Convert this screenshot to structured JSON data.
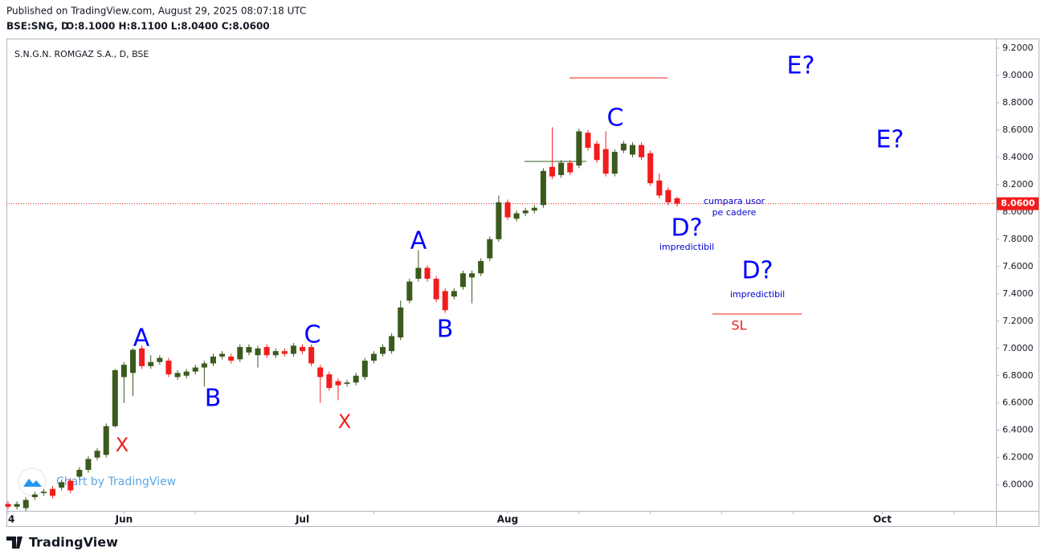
{
  "header": {
    "published": "Published on TradingView.com, August 29, 2025 08:07:18 UTC",
    "symbol": "BSE:SNG, D",
    "ohlc": "O:8.1000 H:8.1100 L:8.0400 C:8.0600",
    "watermark": "Chart by TradingView",
    "brand": "TradingView"
  },
  "chart_data": {
    "type": "candlestick",
    "title": "S.N.G.N. ROMGAZ S.A., D, BSE",
    "categories": [
      "4",
      null,
      null,
      null,
      null,
      null,
      null,
      null,
      null,
      null,
      null,
      null,
      null,
      "Jun",
      null,
      null,
      null,
      null,
      null,
      null,
      null,
      null,
      null,
      null,
      null,
      null,
      null,
      null,
      null,
      null,
      null,
      null,
      null,
      "Jul",
      null,
      null,
      null,
      null,
      null,
      null,
      null,
      null,
      null,
      null,
      null,
      null,
      null,
      null,
      null,
      null,
      null,
      null,
      null,
      null,
      null,
      null,
      "Aug",
      null,
      null,
      null,
      null,
      null,
      null,
      null,
      null,
      null,
      null,
      null,
      null,
      null,
      null,
      null,
      null,
      null,
      null,
      null,
      null,
      null,
      null,
      null,
      null,
      null,
      null,
      null,
      null,
      null,
      null,
      null,
      null,
      null,
      null,
      null,
      null,
      null,
      null,
      null,
      null,
      null,
      "Oct",
      null,
      null,
      null,
      null,
      null,
      null,
      null,
      null,
      null,
      null,
      null,
      null
    ],
    "open": [
      5.86,
      5.84,
      5.83,
      5.91,
      5.94,
      5.97,
      5.98,
      6.03,
      6.06,
      6.11,
      6.2,
      6.22,
      6.43,
      6.79,
      6.82,
      7.0,
      6.87,
      6.9,
      6.91,
      6.79,
      6.8,
      6.83,
      6.86,
      6.89,
      6.94,
      6.94,
      6.92,
      6.97,
      6.95,
      7.01,
      6.95,
      6.98,
      6.96,
      7.01,
      7.01,
      6.86,
      6.81,
      6.76,
      6.74,
      6.75,
      6.79,
      6.91,
      6.96,
      6.98,
      7.08,
      7.35,
      7.51,
      7.59,
      7.51,
      7.42,
      7.38,
      7.45,
      7.52,
      7.55,
      7.66,
      7.8,
      8.07,
      7.95,
      7.99,
      8.01,
      8.05,
      8.33,
      8.27,
      8.36,
      8.34,
      8.58,
      8.5,
      8.46,
      8.28,
      8.45,
      8.42,
      8.49,
      8.43,
      8.23,
      8.16,
      8.1,
      null,
      null,
      null,
      null,
      null,
      null,
      null,
      null,
      null,
      null,
      null,
      null,
      null,
      null,
      null,
      null,
      null,
      null,
      null,
      null,
      null,
      null,
      null,
      null,
      null,
      null,
      null,
      null,
      null,
      null,
      null,
      null,
      null,
      null,
      null
    ],
    "high": [
      5.88,
      5.88,
      5.91,
      5.95,
      5.97,
      5.99,
      6.04,
      6.05,
      6.13,
      6.21,
      6.27,
      6.45,
      6.85,
      6.9,
      7.0,
      7.02,
      6.95,
      6.95,
      6.93,
      6.84,
      6.85,
      6.88,
      6.91,
      6.96,
      6.98,
      6.96,
      7.03,
      7.03,
      7.02,
      7.03,
      7.0,
      7.0,
      7.04,
      7.03,
      7.03,
      6.88,
      6.83,
      6.78,
      6.77,
      6.82,
      6.93,
      6.98,
      7.03,
      7.11,
      7.35,
      7.51,
      7.72,
      7.61,
      7.53,
      7.44,
      7.44,
      7.57,
      7.57,
      7.66,
      7.82,
      8.12,
      8.09,
      8.01,
      8.03,
      8.05,
      8.32,
      8.62,
      8.38,
      8.38,
      8.61,
      8.6,
      8.52,
      8.59,
      8.46,
      8.52,
      8.51,
      8.51,
      8.45,
      8.28,
      8.18,
      8.11,
      null,
      null,
      null,
      null,
      null,
      null,
      null,
      null,
      null,
      null,
      null,
      null,
      null,
      null,
      null,
      null,
      null,
      null,
      null,
      null,
      null,
      null,
      null,
      null,
      null,
      null,
      null,
      null,
      null,
      null,
      null,
      null,
      null,
      null,
      null
    ],
    "low": [
      5.82,
      5.82,
      5.81,
      5.89,
      5.92,
      5.9,
      5.96,
      5.94,
      6.04,
      6.09,
      6.18,
      6.2,
      6.42,
      6.6,
      6.65,
      6.85,
      6.85,
      6.88,
      6.79,
      6.77,
      6.78,
      6.81,
      6.72,
      6.87,
      6.92,
      6.89,
      6.9,
      6.95,
      6.86,
      6.93,
      6.93,
      6.94,
      6.94,
      6.96,
      6.87,
      6.6,
      6.69,
      6.62,
      6.72,
      6.73,
      6.77,
      6.89,
      6.94,
      6.96,
      7.06,
      7.33,
      7.49,
      7.49,
      7.34,
      7.26,
      7.36,
      7.43,
      7.33,
      7.53,
      7.64,
      7.78,
      7.94,
      7.93,
      7.97,
      7.99,
      8.03,
      8.24,
      8.25,
      8.27,
      8.32,
      8.45,
      8.36,
      8.26,
      8.26,
      8.43,
      8.4,
      8.38,
      8.19,
      8.1,
      8.05,
      8.04,
      null,
      null,
      null,
      null,
      null,
      null,
      null,
      null,
      null,
      null,
      null,
      null,
      null,
      null,
      null,
      null,
      null,
      null,
      null,
      null,
      null,
      null,
      null,
      null,
      null,
      null,
      null,
      null,
      null,
      null,
      null,
      null,
      null,
      null,
      null
    ],
    "close": [
      5.84,
      5.86,
      5.89,
      5.93,
      5.95,
      5.92,
      6.02,
      5.96,
      6.11,
      6.19,
      6.25,
      6.43,
      6.84,
      6.88,
      6.99,
      6.87,
      6.9,
      6.93,
      6.81,
      6.82,
      6.83,
      6.86,
      6.89,
      6.94,
      6.96,
      6.91,
      7.01,
      7.01,
      7.0,
      6.95,
      6.98,
      6.96,
      7.02,
      6.98,
      6.89,
      6.79,
      6.71,
      6.73,
      6.75,
      6.8,
      6.91,
      6.96,
      7.01,
      7.09,
      7.3,
      7.49,
      7.59,
      7.51,
      7.36,
      7.28,
      7.42,
      7.55,
      7.55,
      7.64,
      7.8,
      8.07,
      7.96,
      7.99,
      8.01,
      8.03,
      8.3,
      8.26,
      8.36,
      8.29,
      8.59,
      8.47,
      8.38,
      8.28,
      8.44,
      8.5,
      8.49,
      8.4,
      8.21,
      8.12,
      8.07,
      8.06,
      null,
      null,
      null,
      null,
      null,
      null,
      null,
      null,
      null,
      null,
      null,
      null,
      null,
      null,
      null,
      null,
      null,
      null,
      null,
      null,
      null,
      null,
      null,
      null,
      null,
      null,
      null,
      null,
      null,
      null,
      null,
      null,
      null,
      null,
      null
    ],
    "up_color": "#3b5a1d",
    "down_color": "#f21c1c",
    "ylim": [
      5.81,
      9.27
    ],
    "yticks": [
      {
        "value": 6.0,
        "label": "6.0000"
      },
      {
        "value": 6.2,
        "label": "6.2000"
      },
      {
        "value": 6.4,
        "label": "6.4000"
      },
      {
        "value": 6.6,
        "label": "6.6000"
      },
      {
        "value": 6.8,
        "label": "6.8000"
      },
      {
        "value": 7.0,
        "label": "7.0000"
      },
      {
        "value": 7.2,
        "label": "7.2000"
      },
      {
        "value": 7.4,
        "label": "7.4000"
      },
      {
        "value": 7.6,
        "label": "7.6000"
      },
      {
        "value": 7.8,
        "label": "7.8000"
      },
      {
        "value": 8.0,
        "label": "8.0000"
      },
      {
        "value": 8.2,
        "label": "8.2000"
      },
      {
        "value": 8.4,
        "label": "8.4000"
      },
      {
        "value": 8.6,
        "label": "8.6000"
      },
      {
        "value": 8.8,
        "label": "8.8000"
      },
      {
        "value": 9.0,
        "label": "9.0000"
      },
      {
        "value": 9.2,
        "label": "9.2000"
      }
    ],
    "last_price": {
      "value": 8.06,
      "label": "8.0600"
    },
    "grid": false,
    "annotations": [
      {
        "text": "A",
        "color": "#0000ff"
      },
      {
        "text": "B",
        "color": "#0000ff"
      },
      {
        "text": "C",
        "color": "#0000ff"
      },
      {
        "text": "A",
        "color": "#0000ff"
      },
      {
        "text": "B",
        "color": "#0000ff"
      },
      {
        "text": "C",
        "color": "#0000ff"
      },
      {
        "text": "D?",
        "color": "#0000ff"
      },
      {
        "text": "D?",
        "color": "#0000ff"
      },
      {
        "text": "E?",
        "color": "#0000ff"
      },
      {
        "text": "E?",
        "color": "#0000ff"
      },
      {
        "text": "X",
        "color": "#f21c1c"
      },
      {
        "text": "X",
        "color": "#f21c1c"
      },
      {
        "text": "SL",
        "color": "#f21c1c"
      },
      {
        "text": "impredictibil",
        "color": "#0000cc"
      },
      {
        "text": "impredictibil",
        "color": "#0000cc"
      },
      {
        "text": "cumpara usor",
        "color": "#0000cc"
      },
      {
        "text": "pe cadere",
        "color": "#0000cc"
      }
    ]
  }
}
